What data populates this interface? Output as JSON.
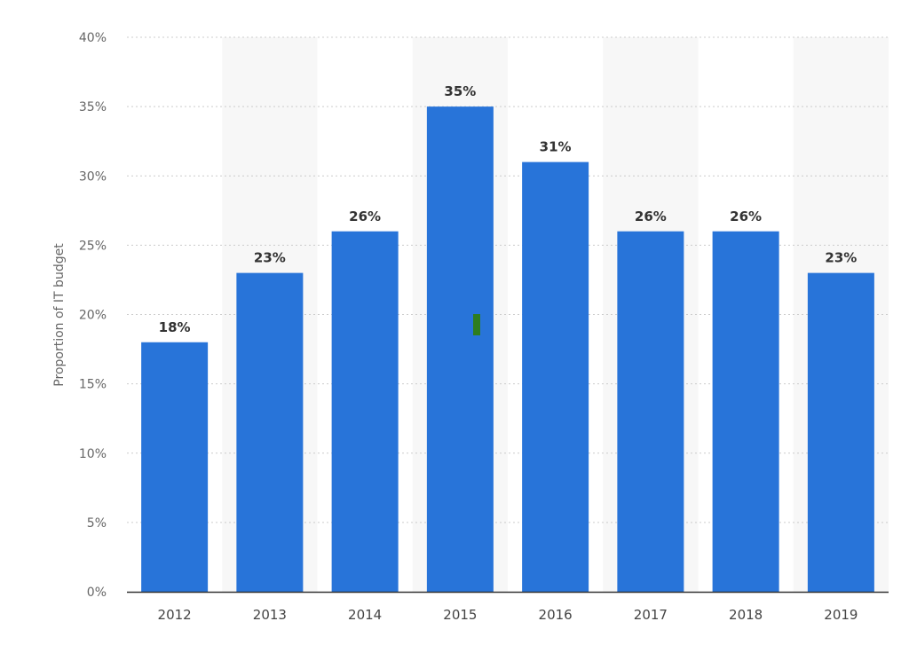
{
  "chart_data": {
    "type": "bar",
    "categories": [
      "2012",
      "2013",
      "2014",
      "2015",
      "2016",
      "2017",
      "2018",
      "2019"
    ],
    "values": [
      18,
      23,
      26,
      35,
      31,
      26,
      26,
      23
    ],
    "data_labels": [
      "18%",
      "23%",
      "26%",
      "35%",
      "31%",
      "26%",
      "26%",
      "23%"
    ],
    "title": "",
    "xlabel": "",
    "ylabel": "Proportion of IT budget",
    "ylim": [
      0,
      40
    ],
    "yticks": [
      0,
      5,
      10,
      15,
      20,
      25,
      30,
      35,
      40
    ],
    "ytick_labels": [
      "0%",
      "5%",
      "10%",
      "15%",
      "20%",
      "25%",
      "30%",
      "35%",
      "40%"
    ],
    "grid": true,
    "legend": "none",
    "colors": {
      "bar": "#2874d9",
      "alt_band": "#f7f7f7",
      "grid": "#cccccc",
      "axis": "#333333",
      "marker": "#2e7d1f"
    }
  }
}
